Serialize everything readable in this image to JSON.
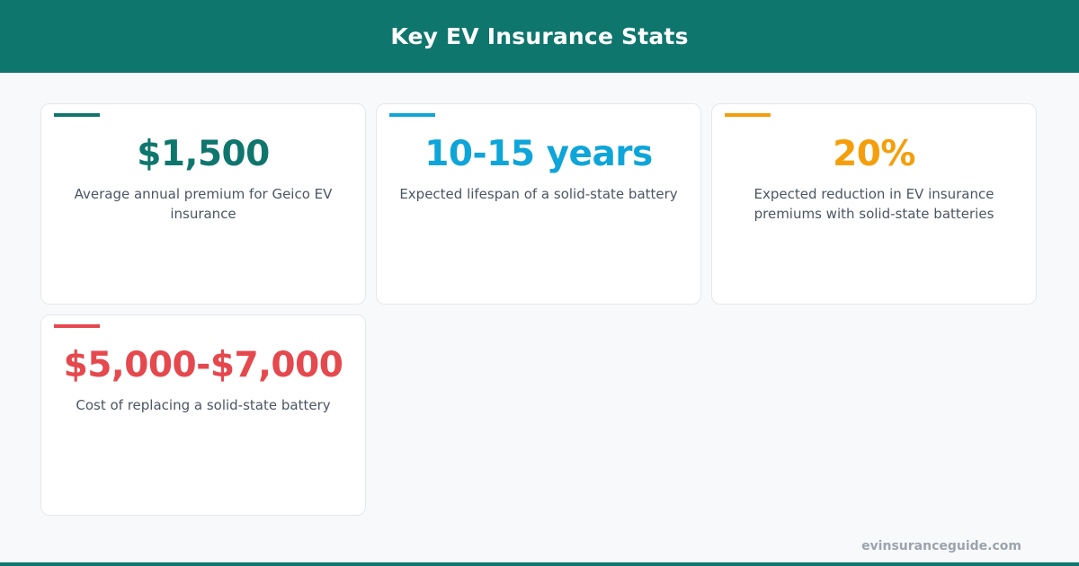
{
  "header": {
    "title": "Key EV Insurance Stats"
  },
  "colors": {
    "header_bg": "#0f766e",
    "card1": "#0f766e",
    "card2": "#0ea5d9",
    "card3": "#f59e0b",
    "card4": "#e5484d"
  },
  "cards": [
    {
      "value": "$1,500",
      "description": "Average annual premium for Geico EV insurance"
    },
    {
      "value": "10-15 years",
      "description": "Expected lifespan of a solid-state battery"
    },
    {
      "value": "20%",
      "description": "Expected reduction in EV insurance premiums with solid-state batteries"
    },
    {
      "value": "$5,000-$7,000",
      "description": "Cost of replacing a solid-state battery"
    }
  ],
  "footer": {
    "site": "evinsuranceguide.com"
  }
}
